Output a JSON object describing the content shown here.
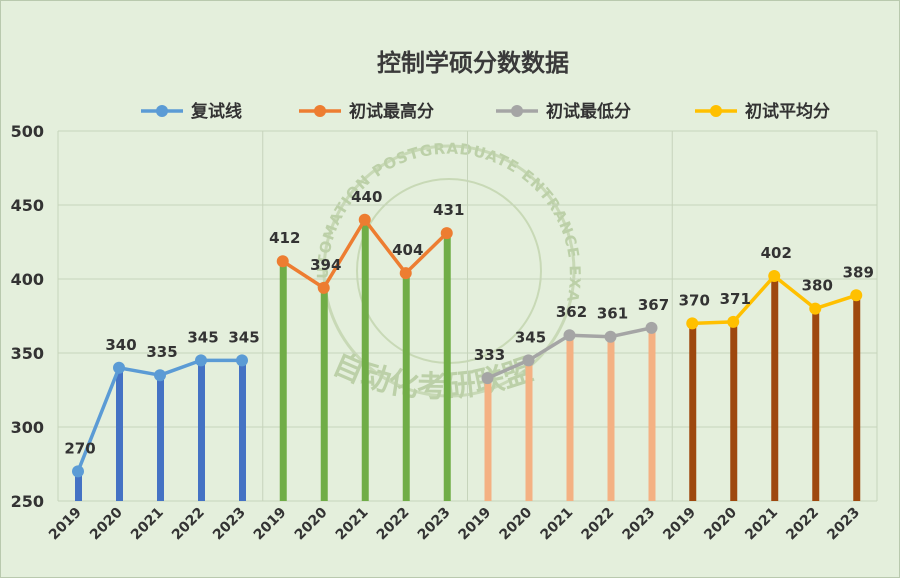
{
  "chart_data": {
    "type": "line",
    "title": "控制学硕分数数据",
    "ylim": [
      250,
      500
    ],
    "yticks": [
      250,
      300,
      350,
      400,
      450,
      500
    ],
    "grid": true,
    "legend_position": "top",
    "categories": [
      "2019",
      "2020",
      "2021",
      "2022",
      "2023"
    ],
    "series": [
      {
        "name": "复试线",
        "color": "#5b9bd5",
        "bar_color": "#4472c4",
        "values": [
          270,
          340,
          335,
          345,
          345
        ]
      },
      {
        "name": "初试最高分",
        "color": "#ed7d31",
        "bar_color": "#70ad47",
        "values": [
          412,
          394,
          440,
          404,
          431
        ]
      },
      {
        "name": "初试最低分",
        "color": "#a5a5a5",
        "bar_color": "#f4b183",
        "values": [
          333,
          345,
          362,
          361,
          367
        ]
      },
      {
        "name": "初试平均分",
        "color": "#ffc000",
        "bar_color": "#9e480e",
        "values": [
          370,
          371,
          402,
          380,
          389
        ]
      }
    ]
  },
  "watermark": {
    "ring_text": "AUTOMATION POSTGRADUATE ENTRANCE EXAMINATION ALLIANCE",
    "brand": "自动化考研联盟"
  }
}
